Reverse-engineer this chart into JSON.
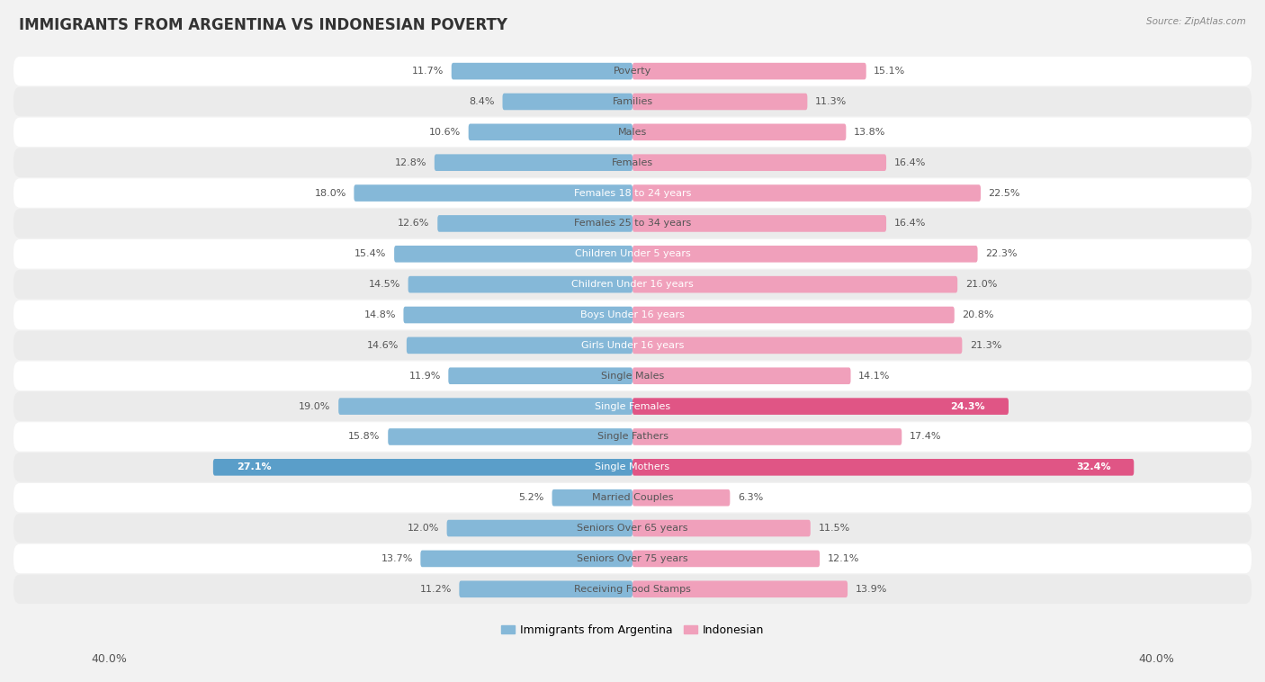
{
  "title": "IMMIGRANTS FROM ARGENTINA VS INDONESIAN POVERTY",
  "source": "Source: ZipAtlas.com",
  "categories": [
    "Poverty",
    "Families",
    "Males",
    "Females",
    "Females 18 to 24 years",
    "Females 25 to 34 years",
    "Children Under 5 years",
    "Children Under 16 years",
    "Boys Under 16 years",
    "Girls Under 16 years",
    "Single Males",
    "Single Females",
    "Single Fathers",
    "Single Mothers",
    "Married Couples",
    "Seniors Over 65 years",
    "Seniors Over 75 years",
    "Receiving Food Stamps"
  ],
  "argentina_values": [
    11.7,
    8.4,
    10.6,
    12.8,
    18.0,
    12.6,
    15.4,
    14.5,
    14.8,
    14.6,
    11.9,
    19.0,
    15.8,
    27.1,
    5.2,
    12.0,
    13.7,
    11.2
  ],
  "indonesian_values": [
    15.1,
    11.3,
    13.8,
    16.4,
    22.5,
    16.4,
    22.3,
    21.0,
    20.8,
    21.3,
    14.1,
    24.3,
    17.4,
    32.4,
    6.3,
    11.5,
    12.1,
    13.9
  ],
  "argentina_color": "#85b8d8",
  "indonesian_color": "#f0a0bb",
  "argentina_highlight_color": "#5a9ec9",
  "indonesian_highlight_color": "#e05585",
  "row_color_odd": "#f5f5f5",
  "row_color_even": "#e8e8e8",
  "background_color": "#f2f2f2",
  "xlim": 40.0,
  "bar_height": 0.55,
  "title_fontsize": 12,
  "label_fontsize": 8,
  "value_fontsize": 8,
  "tick_fontsize": 9
}
